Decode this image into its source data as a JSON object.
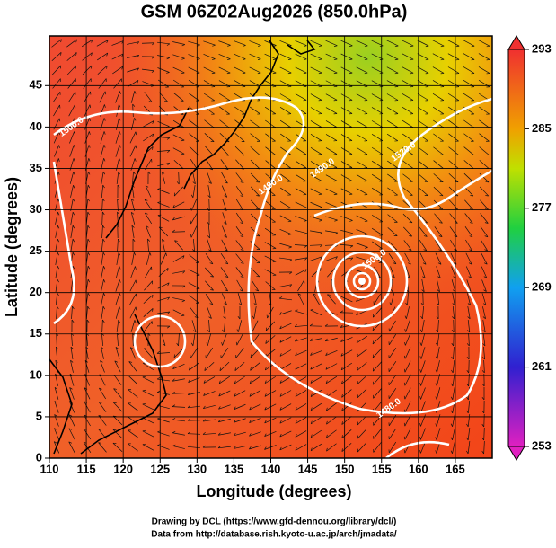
{
  "chart_data": {
    "type": "map",
    "title": "GSM 06Z02Aug2026 (850.0hPa)",
    "x_label": "Longitude (degrees)",
    "y_label": "Latitude  (degrees)",
    "xlim": [
      110,
      170
    ],
    "xticks": [
      110,
      115,
      120,
      125,
      130,
      135,
      140,
      145,
      150,
      155,
      160,
      165
    ],
    "ylim": [
      0,
      51
    ],
    "yticks": [
      0,
      5,
      10,
      15,
      20,
      25,
      30,
      35,
      40,
      45
    ],
    "grid": true,
    "colorbar": {
      "range": [
        253,
        293
      ],
      "ticks": [
        253,
        261,
        269,
        277,
        285,
        293
      ]
    },
    "contour_labels": [
      {
        "text": "1500.0",
        "lon": 113,
        "lat": 40
      },
      {
        "text": "1490.0",
        "lon": 140,
        "lat": 33
      },
      {
        "text": "1490.0",
        "lon": 147,
        "lat": 35
      },
      {
        "text": "1520.0",
        "lon": 158,
        "lat": 37
      },
      {
        "text": "1500.0",
        "lon": 154,
        "lat": 24
      },
      {
        "text": "1480.0",
        "lon": 156,
        "lat": 6
      }
    ],
    "credits": [
      "Drawing by DCL (https://www.gfd-dennou.org/library/dcl/)",
      "Data from http://database.rish.kyoto-u.ac.jp/arch/jmadata/"
    ]
  }
}
